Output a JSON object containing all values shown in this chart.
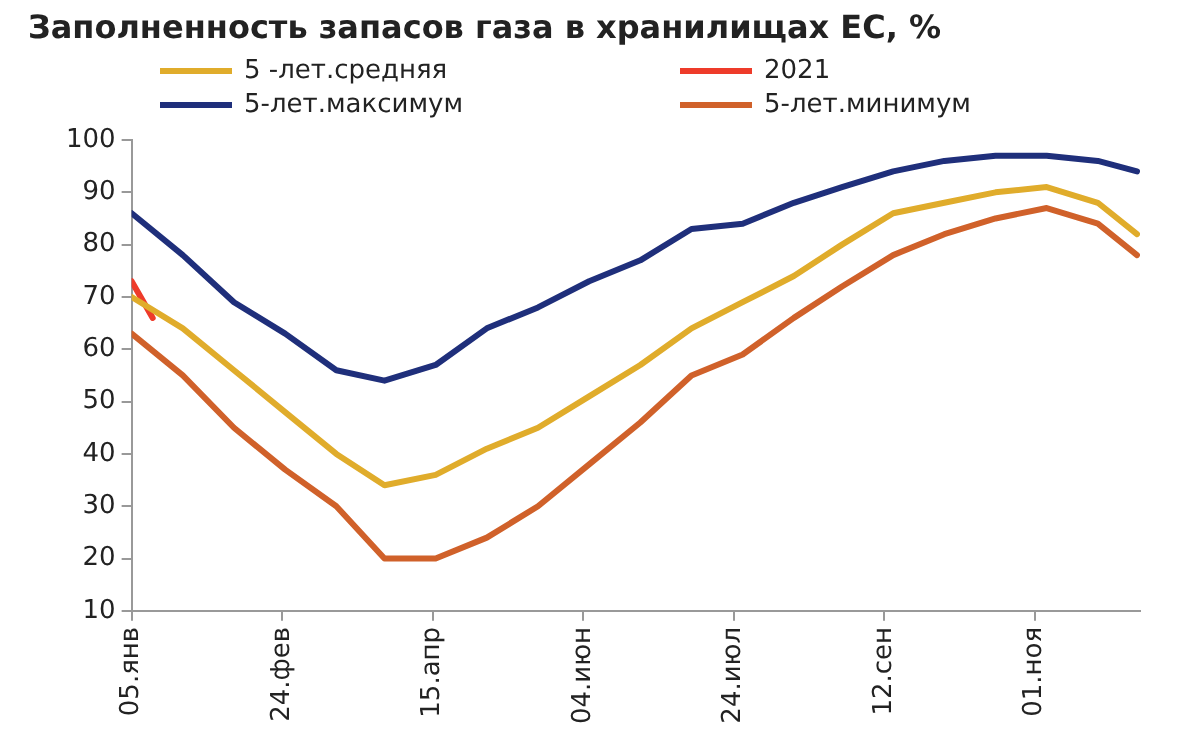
{
  "chart_data": {
    "type": "line",
    "title": "Заполненность запасов газа в хранилищах ЕС, %",
    "x": [
      "--01-05",
      "--01-22",
      "--02-08",
      "--02-25",
      "--03-14",
      "--03-30",
      "--04-16",
      "--05-03",
      "--05-20",
      "--06-06",
      "--06-23",
      "--07-10",
      "--07-27",
      "--08-13",
      "--08-29",
      "--09-15",
      "--10-02",
      "--10-19",
      "--11-05",
      "--11-22",
      "--12-05"
    ],
    "series": [
      {
        "name": "5 -лет.средняя",
        "color": "#e0ac2b",
        "values": [
          70,
          64,
          56,
          48,
          40,
          34,
          36,
          41,
          45,
          51,
          57,
          64,
          69,
          74,
          80,
          86,
          88,
          90,
          91,
          88,
          82
        ]
      },
      {
        "name": "2021",
        "color": "#ee3b2a",
        "x": [
          "--01-05",
          "--01-09",
          "--01-12"
        ],
        "values": [
          73,
          69,
          66
        ]
      },
      {
        "name": "5-лет.максимум",
        "color": "#1f2f7b",
        "values": [
          86,
          78,
          69,
          63,
          56,
          54,
          57,
          64,
          68,
          73,
          77,
          83,
          84,
          88,
          91,
          94,
          96,
          97,
          97,
          96,
          94
        ]
      },
      {
        "name": "5-лет.минимум",
        "color": "#d0612a",
        "values": [
          63,
          55,
          45,
          37,
          30,
          20,
          20,
          24,
          30,
          38,
          46,
          55,
          59,
          66,
          72,
          78,
          82,
          85,
          87,
          84,
          78
        ]
      }
    ],
    "xlim": [
      "--01-05",
      "--12-06"
    ],
    "xticks": [
      {
        "value": "--01-05",
        "label": "05.янв"
      },
      {
        "value": "--02-24",
        "label": "24.фев"
      },
      {
        "value": "--04-15",
        "label": "15.апр"
      },
      {
        "value": "--06-04",
        "label": "04.июн"
      },
      {
        "value": "--07-24",
        "label": "24.июл"
      },
      {
        "value": "--09-12",
        "label": "12.сен"
      },
      {
        "value": "--11-01",
        "label": "01.ноя"
      }
    ],
    "ylim": [
      10,
      100
    ],
    "yticks": [
      10,
      20,
      30,
      40,
      50,
      60,
      70,
      80,
      90,
      100
    ],
    "grid": false,
    "legend": "top",
    "marker": "none",
    "line_style": "solid"
  }
}
